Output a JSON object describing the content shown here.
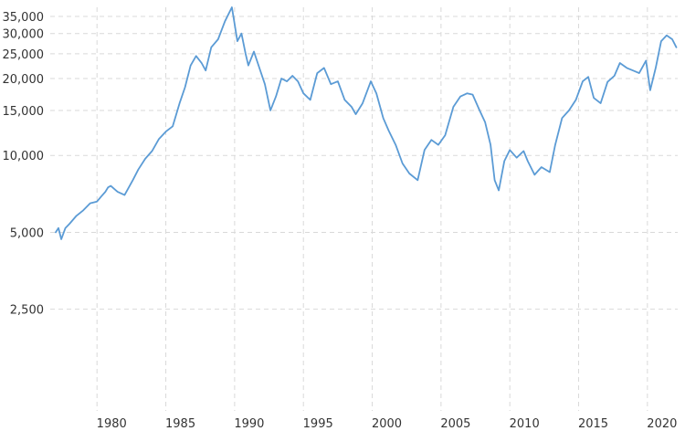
{
  "chart_data": {
    "type": "line",
    "title": "",
    "xlabel": "",
    "ylabel": "",
    "y_scale": "log",
    "grid": true,
    "legend": "none",
    "xlim": [
      1976.6,
      2022.2
    ],
    "ylim": [
      1000,
      38000
    ],
    "x_ticks": [
      1980,
      1985,
      1990,
      1995,
      2000,
      2005,
      2010,
      2015,
      2020
    ],
    "x_tick_labels": [
      "1980",
      "1985",
      "1990",
      "1995",
      "2000",
      "2005",
      "2010",
      "2015",
      "2020"
    ],
    "y_ticks": [
      2500,
      5000,
      10000,
      15000,
      20000,
      25000,
      30000,
      35000
    ],
    "y_tick_labels": [
      "2,500",
      "5,000",
      "10,000",
      "15,000",
      "20,000",
      "25,000",
      "30,000",
      "35,000"
    ],
    "colors": {
      "line": "#5b9bd5",
      "grid": "#d9d9d9",
      "text": "#333333"
    },
    "series": [
      {
        "x": [
          1977.0,
          1977.2,
          1977.4,
          1977.7,
          1978.0,
          1978.5,
          1979.0,
          1979.5,
          1980.0,
          1980.3,
          1980.6,
          1980.8,
          1981.0,
          1981.5,
          1982.0,
          1982.6,
          1983.0,
          1983.5,
          1984.0,
          1984.5,
          1985.0,
          1985.5,
          1986.0,
          1986.4,
          1986.8,
          1987.2,
          1987.6,
          1987.9,
          1988.3,
          1988.8,
          1989.3,
          1989.8,
          1989.95,
          1990.2,
          1990.5,
          1990.8,
          1991.0,
          1991.4,
          1991.8,
          1992.2,
          1992.6,
          1993.0,
          1993.4,
          1993.8,
          1994.2,
          1994.6,
          1995.0,
          1995.5,
          1996.0,
          1996.5,
          1997.0,
          1997.5,
          1998.0,
          1998.5,
          1998.8,
          1999.3,
          1999.9,
          2000.3,
          2000.8,
          2001.2,
          2001.7,
          2002.2,
          2002.7,
          2003.3,
          2003.8,
          2004.3,
          2004.8,
          2005.3,
          2005.9,
          2006.4,
          2006.9,
          2007.3,
          2007.8,
          2008.2,
          2008.6,
          2008.9,
          2009.2,
          2009.6,
          2010.0,
          2010.5,
          2011.0,
          2011.3,
          2011.8,
          2012.3,
          2012.9,
          2013.3,
          2013.8,
          2014.3,
          2014.8,
          2015.3,
          2015.7,
          2016.1,
          2016.6,
          2017.1,
          2017.6,
          2018.0,
          2018.5,
          2018.95,
          2019.4,
          2019.9,
          2020.2,
          2020.6,
          2021.0,
          2021.4,
          2021.8,
          2022.1
        ],
        "values": [
          5000,
          5200,
          4700,
          5200,
          5400,
          5800,
          6100,
          6500,
          6600,
          6900,
          7200,
          7500,
          7600,
          7200,
          7000,
          8000,
          8800,
          9700,
          10400,
          11600,
          12400,
          13000,
          16000,
          18500,
          22500,
          24500,
          23000,
          21500,
          26500,
          28500,
          33500,
          38000,
          34000,
          28000,
          30000,
          25000,
          22500,
          25500,
          22000,
          19000,
          15000,
          17000,
          20000,
          19500,
          20500,
          19500,
          17500,
          16500,
          21000,
          22000,
          19000,
          19500,
          16500,
          15500,
          14500,
          16000,
          19500,
          17500,
          14000,
          12500,
          11000,
          9300,
          8500,
          8000,
          10500,
          11500,
          11000,
          12000,
          15500,
          17000,
          17500,
          17300,
          15000,
          13500,
          11000,
          8000,
          7300,
          9500,
          10500,
          9800,
          10400,
          9500,
          8400,
          9000,
          8600,
          11000,
          14000,
          15000,
          16500,
          19500,
          20300,
          16800,
          16000,
          19400,
          20500,
          23000,
          22000,
          21500,
          21000,
          23500,
          18000,
          22000,
          28000,
          29500,
          28500,
          26500
        ]
      }
    ]
  }
}
